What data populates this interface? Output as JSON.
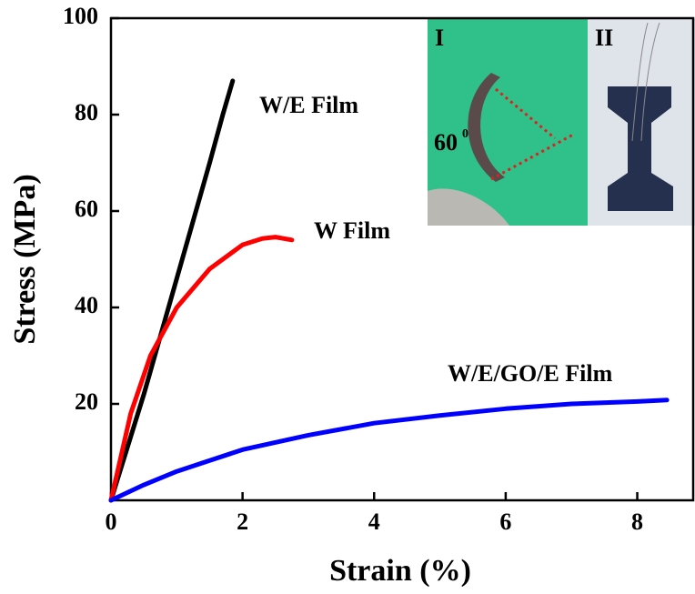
{
  "chart_data": {
    "type": "line",
    "xlabel": "Strain (%)",
    "ylabel": "Stress (MPa)",
    "xlim": [
      0,
      8.85
    ],
    "ylim": [
      0,
      100
    ],
    "xticks": [
      0,
      2,
      4,
      6,
      8
    ],
    "yticks": [
      20,
      40,
      60,
      80,
      100
    ],
    "series": [
      {
        "name": "W/E Film",
        "color": "#000000",
        "x": [
          0,
          0.25,
          0.5,
          0.75,
          1,
          1.25,
          1.5,
          1.7,
          1.85
        ],
        "values": [
          0,
          11,
          22,
          34,
          46,
          58,
          70,
          80,
          87
        ]
      },
      {
        "name": "W Film",
        "color": "#ff0000",
        "x": [
          0,
          0.15,
          0.3,
          0.6,
          1,
          1.5,
          2,
          2.3,
          2.5,
          2.75
        ],
        "values": [
          0,
          9,
          18,
          30,
          40,
          48,
          53,
          54.3,
          54.6,
          54
        ]
      },
      {
        "name": "W/E/GO/E Film",
        "color": "#0000ff",
        "x": [
          0,
          0.5,
          1,
          2,
          3,
          4,
          5,
          6,
          7,
          8,
          8.45
        ],
        "values": [
          0,
          3.2,
          6,
          10.5,
          13.5,
          16,
          17.6,
          19,
          20,
          20.5,
          20.8
        ]
      }
    ],
    "inset": {
      "panel_labels": [
        "I",
        "II"
      ],
      "angle_label": "60",
      "angle_unit": "0"
    }
  }
}
